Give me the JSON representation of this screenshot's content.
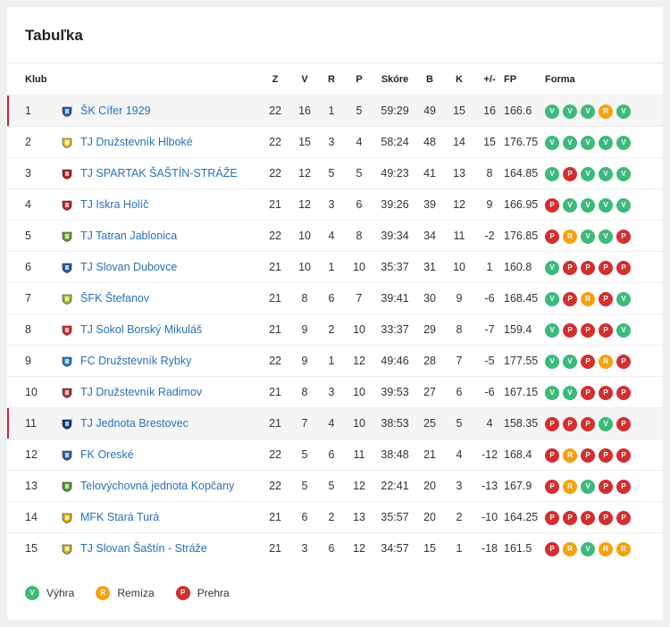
{
  "title": "Tabuľka",
  "headers": {
    "club": "Klub",
    "z": "Z",
    "v": "V",
    "r": "R",
    "p": "P",
    "score": "Skóre",
    "b": "B",
    "k": "K",
    "diff": "+/-",
    "fp": "FP",
    "form": "Forma"
  },
  "colors": {
    "win": "#3cba7a",
    "draw": "#f5a20f",
    "loss": "#d32f2f",
    "link": "#2b70b9",
    "highlight": "#c9252c"
  },
  "rows": [
    {
      "rank": "1",
      "club": "ŠK Cífer 1929",
      "z": "22",
      "v": "16",
      "r": "1",
      "p": "5",
      "score": "59:29",
      "b": "49",
      "k": "15",
      "diff": "16",
      "fp": "166.6",
      "form": [
        "V",
        "V",
        "V",
        "R",
        "V"
      ],
      "highlight": true,
      "logo_color": "#2b62b0"
    },
    {
      "rank": "2",
      "club": "TJ Družstevník Hlboké",
      "z": "22",
      "v": "15",
      "r": "3",
      "p": "4",
      "score": "58:24",
      "b": "48",
      "k": "14",
      "diff": "15",
      "fp": "176.75",
      "form": [
        "V",
        "V",
        "V",
        "V",
        "V"
      ],
      "highlight": false,
      "logo_color": "#e2c32a"
    },
    {
      "rank": "3",
      "club": "TJ SPARTAK ŠAŠTÍN-STRÁŽE",
      "z": "22",
      "v": "12",
      "r": "5",
      "p": "5",
      "score": "49:23",
      "b": "41",
      "k": "13",
      "diff": "8",
      "fp": "164.85",
      "form": [
        "V",
        "P",
        "V",
        "V",
        "V"
      ],
      "highlight": false,
      "logo_color": "#b52424"
    },
    {
      "rank": "4",
      "club": "TJ Iskra Holíč",
      "z": "21",
      "v": "12",
      "r": "3",
      "p": "6",
      "score": "39:26",
      "b": "39",
      "k": "12",
      "diff": "9",
      "fp": "166.95",
      "form": [
        "P",
        "V",
        "V",
        "V",
        "V"
      ],
      "highlight": false,
      "logo_color": "#c62828"
    },
    {
      "rank": "5",
      "club": "TJ Tatran Jablonica",
      "z": "22",
      "v": "10",
      "r": "4",
      "p": "8",
      "score": "39:34",
      "b": "34",
      "k": "11",
      "diff": "-2",
      "fp": "176.85",
      "form": [
        "P",
        "R",
        "V",
        "V",
        "P"
      ],
      "highlight": false,
      "logo_color": "#6ca23a"
    },
    {
      "rank": "6",
      "club": "TJ Slovan Dubovce",
      "z": "21",
      "v": "10",
      "r": "1",
      "p": "10",
      "score": "35:37",
      "b": "31",
      "k": "10",
      "diff": "1",
      "fp": "160.8",
      "form": [
        "V",
        "P",
        "P",
        "P",
        "P"
      ],
      "highlight": false,
      "logo_color": "#2460a7"
    },
    {
      "rank": "7",
      "club": "ŠFK Štefanov",
      "z": "21",
      "v": "8",
      "r": "6",
      "p": "7",
      "score": "39:41",
      "b": "30",
      "k": "9",
      "diff": "-6",
      "fp": "168.45",
      "form": [
        "V",
        "P",
        "R",
        "P",
        "V"
      ],
      "highlight": false,
      "logo_color": "#9cbe2a"
    },
    {
      "rank": "8",
      "club": "TJ Sokol Borský Mikuláš",
      "z": "21",
      "v": "9",
      "r": "2",
      "p": "10",
      "score": "33:37",
      "b": "29",
      "k": "8",
      "diff": "-7",
      "fp": "159.4",
      "form": [
        "V",
        "P",
        "P",
        "P",
        "V"
      ],
      "highlight": false,
      "logo_color": "#d32f2f"
    },
    {
      "rank": "9",
      "club": "FC Družstevník Rybky",
      "z": "22",
      "v": "9",
      "r": "1",
      "p": "12",
      "score": "49:46",
      "b": "28",
      "k": "7",
      "diff": "-5",
      "fp": "177.55",
      "form": [
        "V",
        "V",
        "P",
        "R",
        "P"
      ],
      "highlight": false,
      "logo_color": "#2c7fc7"
    },
    {
      "rank": "10",
      "club": "TJ Družstevník Radimov",
      "z": "21",
      "v": "8",
      "r": "3",
      "p": "10",
      "score": "39:53",
      "b": "27",
      "k": "6",
      "diff": "-6",
      "fp": "167.15",
      "form": [
        "V",
        "V",
        "P",
        "P",
        "P"
      ],
      "highlight": false,
      "logo_color": "#b03a3a"
    },
    {
      "rank": "11",
      "club": "TJ Jednota Brestovec",
      "z": "21",
      "v": "7",
      "r": "4",
      "p": "10",
      "score": "38:53",
      "b": "25",
      "k": "5",
      "diff": "4",
      "fp": "158.35",
      "form": [
        "P",
        "P",
        "P",
        "V",
        "P"
      ],
      "highlight": true,
      "logo_color": "#1c3f7a"
    },
    {
      "rank": "12",
      "club": "FK Oreské",
      "z": "22",
      "v": "5",
      "r": "6",
      "p": "11",
      "score": "38:48",
      "b": "21",
      "k": "4",
      "diff": "-12",
      "fp": "168.4",
      "form": [
        "P",
        "R",
        "P",
        "P",
        "P"
      ],
      "highlight": false,
      "logo_color": "#3a5fa8"
    },
    {
      "rank": "13",
      "club": "Telovýchovná jednota Kopčany",
      "z": "22",
      "v": "5",
      "r": "5",
      "p": "12",
      "score": "22:41",
      "b": "20",
      "k": "3",
      "diff": "-13",
      "fp": "167.9",
      "form": [
        "P",
        "R",
        "V",
        "P",
        "P"
      ],
      "highlight": false,
      "logo_color": "#5b9a2e"
    },
    {
      "rank": "14",
      "club": "MFK Stará Turá",
      "z": "21",
      "v": "6",
      "r": "2",
      "p": "13",
      "score": "35:57",
      "b": "20",
      "k": "2",
      "diff": "-10",
      "fp": "164.25",
      "form": [
        "P",
        "P",
        "P",
        "P",
        "P"
      ],
      "highlight": false,
      "logo_color": "#d9b21a"
    },
    {
      "rank": "15",
      "club": "TJ Slovan Šaštín - Stráže",
      "z": "21",
      "v": "3",
      "r": "6",
      "p": "12",
      "score": "34:57",
      "b": "15",
      "k": "1",
      "diff": "-18",
      "fp": "161.5",
      "form": [
        "P",
        "R",
        "V",
        "R",
        "R"
      ],
      "highlight": false,
      "logo_color": "#c9b52a"
    }
  ],
  "legend": [
    {
      "code": "V",
      "label": "Výhra"
    },
    {
      "code": "R",
      "label": "Remíza"
    },
    {
      "code": "P",
      "label": "Prehra"
    }
  ]
}
